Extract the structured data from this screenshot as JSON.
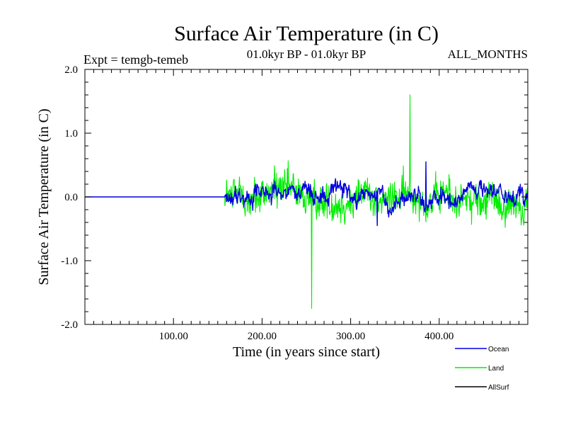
{
  "chart_data": {
    "type": "line",
    "title": "Surface Air Temperature (in C)",
    "subtitle_left": "Expt = temgb-temeb",
    "subtitle_center": "01.0kyr BP - 01.0kyr BP",
    "subtitle_right": "ALL_MONTHS",
    "xlabel": "Time (in years since start)",
    "ylabel": "Surface Air Temperature (in C)",
    "xlim": [
      0,
      500
    ],
    "ylim": [
      -2.0,
      2.0
    ],
    "x_ticks": [
      100,
      200,
      300,
      400
    ],
    "x_tick_labels": [
      "100.00",
      "200.00",
      "300.00",
      "400.00"
    ],
    "y_ticks": [
      -2.0,
      -1.0,
      0.0,
      1.0,
      2.0
    ],
    "y_tick_labels": [
      "-2.0",
      "-1.0",
      "0.0",
      "1.0",
      "2.0"
    ],
    "legend_position": "bottom-right",
    "series": [
      {
        "name": "Land",
        "color": "#00ee00",
        "flat_until": 158,
        "flat_value": 0.0,
        "x_end": 500,
        "noise_amplitude": 0.4,
        "max_value": 1.6,
        "max_x": 367,
        "min_value": -1.75,
        "min_x": 256
      },
      {
        "name": "Ocean",
        "color": "#0000dd",
        "flat_until": 158,
        "flat_value": 0.0,
        "x_end": 500,
        "noise_amplitude": 0.15,
        "max_value": 0.55,
        "max_x": 385,
        "min_value": -0.45,
        "min_x": 330
      },
      {
        "name": "AllSurf",
        "color": "#000000",
        "flat_until": 0,
        "flat_value": 0.0,
        "x_end": 0,
        "noise_amplitude": 0,
        "max_value": 0,
        "max_x": 0,
        "min_value": 0,
        "min_x": 0
      }
    ]
  }
}
